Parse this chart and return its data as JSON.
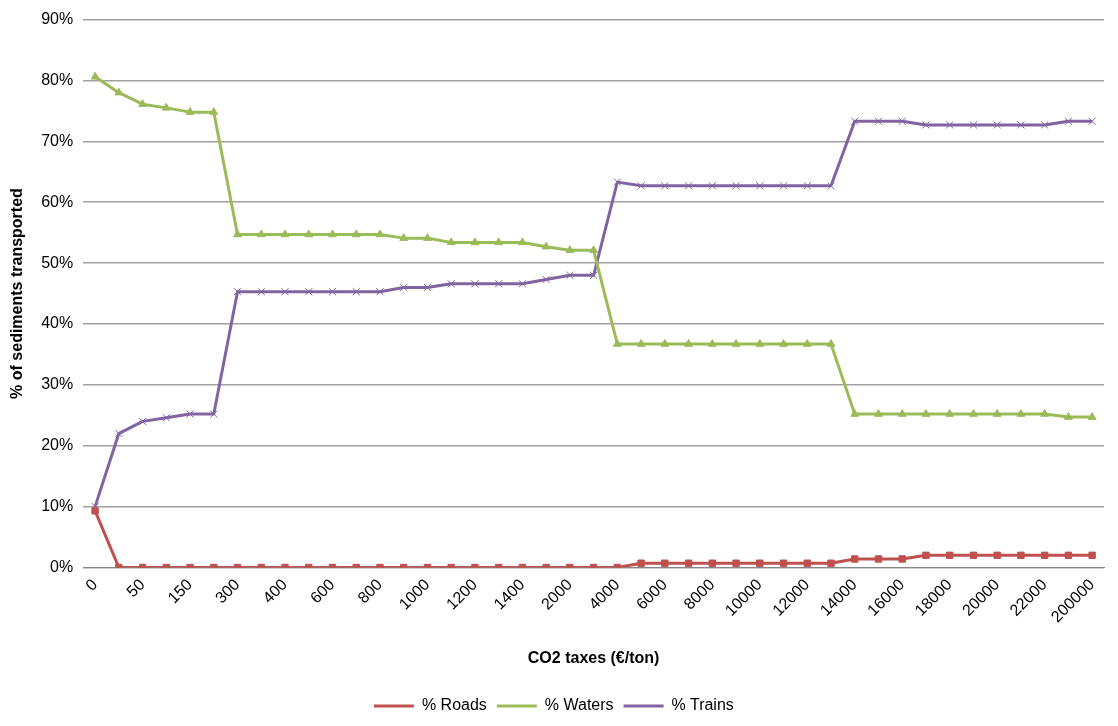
{
  "chart_data": {
    "type": "line",
    "xlabel": "CO2 taxes (€/ton)",
    "ylabel": "% of sediments transported",
    "categories": [
      "0",
      null,
      "50",
      null,
      "150",
      null,
      "300",
      null,
      "400",
      null,
      "600",
      null,
      "800",
      null,
      "1000",
      null,
      "1200",
      null,
      "1400",
      null,
      "2000",
      null,
      "4000",
      null,
      "6000",
      null,
      "8000",
      null,
      "10000",
      null,
      "12000",
      null,
      "14000",
      null,
      "16000",
      null,
      "18000",
      null,
      "20000",
      null,
      "22000",
      null,
      "200000"
    ],
    "series": [
      {
        "name": "% Roads",
        "color": "#c0504d",
        "marker": "square",
        "values": [
          9.3,
          0,
          0,
          0,
          0,
          0,
          0,
          0,
          0,
          0,
          0,
          0,
          0,
          0,
          0,
          0,
          0,
          0,
          0,
          0,
          0,
          0,
          0,
          0.7,
          0.7,
          0.7,
          0.7,
          0.7,
          0.7,
          0.7,
          0.7,
          0.7,
          1.4,
          1.4,
          1.4,
          2.0,
          2.0,
          2.0,
          2.0,
          2.0,
          2.0,
          2.0,
          2.0
        ]
      },
      {
        "name": "% Waters",
        "color": "#9bbb59",
        "marker": "triangle",
        "values": [
          80.6,
          78.0,
          76.1,
          75.5,
          74.8,
          74.8,
          54.7,
          54.7,
          54.7,
          54.7,
          54.7,
          54.7,
          54.7,
          54.1,
          54.1,
          53.4,
          53.4,
          53.4,
          53.4,
          52.7,
          52.1,
          52.1,
          36.7,
          36.7,
          36.7,
          36.7,
          36.7,
          36.7,
          36.7,
          36.7,
          36.7,
          36.7,
          25.2,
          25.2,
          25.2,
          25.2,
          25.2,
          25.2,
          25.2,
          25.2,
          25.2,
          24.7,
          24.7
        ]
      },
      {
        "name": "% Trains",
        "color": "#8064a2",
        "marker": "cross",
        "values": [
          10.0,
          22.0,
          24.0,
          24.6,
          25.2,
          25.2,
          45.3,
          45.3,
          45.3,
          45.3,
          45.3,
          45.3,
          45.3,
          46.0,
          46.0,
          46.6,
          46.6,
          46.6,
          46.6,
          47.3,
          48.0,
          48.0,
          63.3,
          62.7,
          62.7,
          62.7,
          62.7,
          62.7,
          62.7,
          62.7,
          62.7,
          62.7,
          73.3,
          73.3,
          73.3,
          72.7,
          72.7,
          72.7,
          72.7,
          72.7,
          72.7,
          73.3,
          73.3
        ]
      }
    ],
    "ylim": [
      0,
      90
    ],
    "yticks": [
      {
        "value": 0,
        "label": "0%"
      },
      {
        "value": 10,
        "label": "10%"
      },
      {
        "value": 20,
        "label": "20%"
      },
      {
        "value": 30,
        "label": "30%"
      },
      {
        "value": 40,
        "label": "40%"
      },
      {
        "value": 50,
        "label": "50%"
      },
      {
        "value": 60,
        "label": "60%"
      },
      {
        "value": 70,
        "label": "70%"
      },
      {
        "value": 80,
        "label": "80%"
      },
      {
        "value": 90,
        "label": "90%"
      }
    ],
    "grid": "y",
    "legend": "bottom",
    "line_style": "solid"
  }
}
